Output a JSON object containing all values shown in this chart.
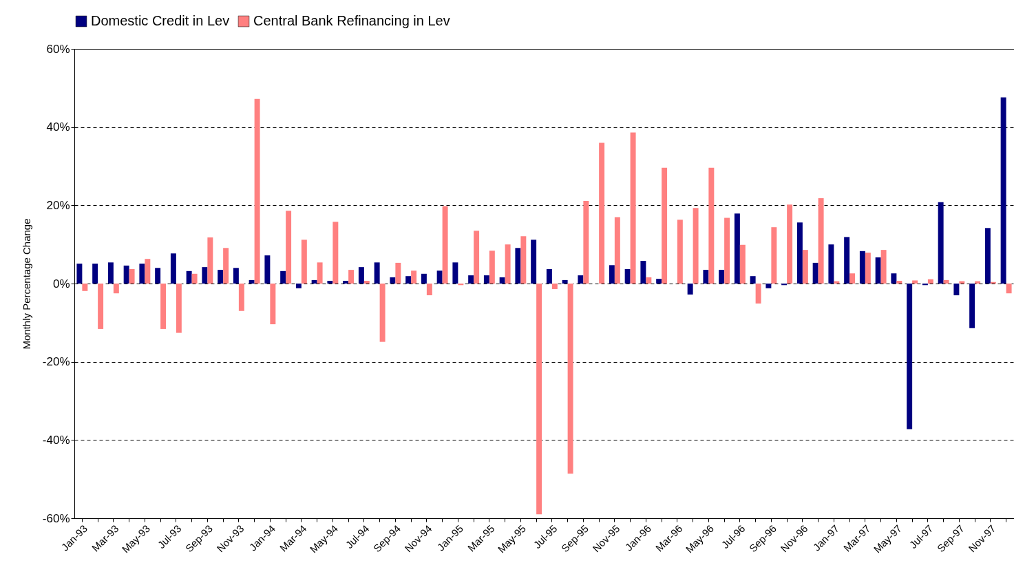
{
  "chart_data": {
    "type": "bar",
    "ylabel": "Monthly Percentage Change",
    "categories": [
      "Jan-93",
      null,
      "Mar-93",
      null,
      "May-93",
      null,
      "Jul-93",
      null,
      "Sep-93",
      null,
      "Nov-93",
      null,
      "Jan-94",
      null,
      "Mar-94",
      null,
      "May-94",
      null,
      "Jul-94",
      null,
      "Sep-94",
      null,
      "Nov-94",
      null,
      "Jan-95",
      null,
      "Mar-95",
      null,
      "May-95",
      null,
      "Jul-95",
      null,
      "Sep-95",
      null,
      "Nov-95",
      null,
      "Jan-96",
      null,
      "Mar-96",
      null,
      "May-96",
      null,
      "Jul-96",
      null,
      "Sep-96",
      null,
      "Nov-96",
      null,
      "Jan-97",
      null,
      "Mar-97",
      null,
      "May-97",
      null,
      "Jul-97",
      null,
      "Sep-97",
      null,
      "Nov-97",
      null
    ],
    "series": [
      {
        "name": "Domestic Credit in Lev",
        "color": "#000080",
        "values": [
          5.1,
          5.1,
          5.4,
          4.6,
          5.1,
          4.0,
          7.7,
          3.2,
          4.2,
          3.5,
          4.0,
          0.9,
          7.2,
          3.2,
          -1.2,
          0.9,
          0.7,
          0.7,
          4.2,
          5.4,
          1.6,
          1.9,
          2.5,
          3.3,
          5.4,
          2.1,
          2.1,
          1.6,
          9.1,
          11.2,
          3.7,
          0.9,
          2.1,
          0,
          4.7,
          3.7,
          5.8,
          1.2,
          0,
          -2.8,
          3.5,
          3.5,
          17.9,
          1.9,
          -1.2,
          -0.4,
          15.6,
          5.3,
          10.0,
          11.9,
          8.3,
          6.7,
          2.6,
          -37.2,
          -0.4,
          20.8,
          -3.0,
          -11.4,
          14.2,
          47.6
        ]
      },
      {
        "name": "Central Bank Refinancing in Lev",
        "color": "#ff8080",
        "values": [
          -1.9,
          -11.6,
          -2.5,
          3.7,
          6.3,
          -11.6,
          -12.6,
          2.5,
          11.8,
          9.1,
          -7.0,
          47.2,
          -10.4,
          18.6,
          11.2,
          5.4,
          15.8,
          3.5,
          0.7,
          -14.9,
          5.3,
          3.3,
          -3.0,
          19.8,
          -0.4,
          13.5,
          8.4,
          10.0,
          12.1,
          -59,
          -1.4,
          -48.6,
          21.1,
          36.0,
          17.0,
          38.6,
          1.6,
          29.6,
          16.3,
          19.3,
          29.6,
          16.8,
          9.9,
          -5.1,
          14.4,
          20.2,
          8.6,
          21.8,
          0.6,
          2.6,
          7.9,
          8.6,
          0.7,
          0.8,
          1.1,
          0.9,
          0.6,
          0.6,
          0.4,
          -2.5
        ]
      }
    ],
    "ylim": [
      -60,
      60
    ],
    "yticks": [
      {
        "value": -60,
        "label": "-60%"
      },
      {
        "value": -40,
        "label": "-40%"
      },
      {
        "value": -20,
        "label": "-20%"
      },
      {
        "value": 0,
        "label": "0%"
      },
      {
        "value": 20,
        "label": "20%"
      },
      {
        "value": 40,
        "label": "40%"
      },
      {
        "value": 60,
        "label": "60%"
      }
    ],
    "grid": "y",
    "legend": "top"
  }
}
